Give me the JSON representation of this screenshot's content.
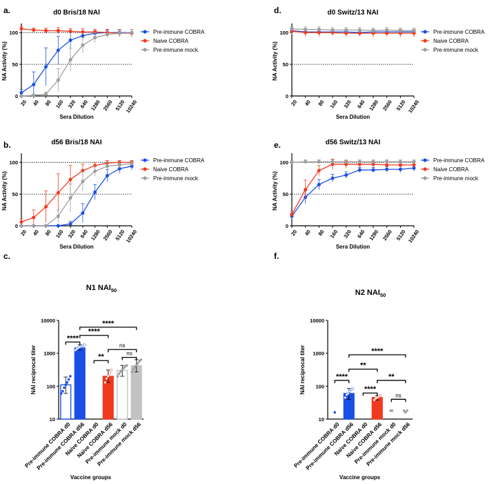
{
  "figure": {
    "colors": {
      "blue": "#1a4fe6",
      "red": "#ef3a1f",
      "gray": "#9e9e9e",
      "lightgray": "#c3c3c3"
    }
  },
  "chart_data": [
    {
      "id": "a",
      "type": "line",
      "panel_label": "a.",
      "title": "d0 Bris/18 NAI",
      "xlabel": "Sera Dilution",
      "ylabel": "NA Activity (%)",
      "categories": [
        "20",
        "40",
        "80",
        "160",
        "320",
        "640",
        "1280",
        "2560",
        "5120",
        "10240"
      ],
      "ylim": [
        0,
        110
      ],
      "yticks": [
        "0",
        "50",
        "100"
      ],
      "reference_lines": [
        50,
        100
      ],
      "legend": [
        "Pre-immune COBRA",
        "Naive COBRA",
        "Pre-immune mock"
      ],
      "series": [
        {
          "name": "Pre-immune COBRA",
          "color": "#1a4fe6",
          "values": [
            5,
            18,
            46,
            72,
            88,
            95,
            99,
            100,
            100,
            100
          ],
          "errors": [
            5,
            20,
            30,
            22,
            12,
            6,
            4,
            4,
            5,
            5
          ]
        },
        {
          "name": "Naive COBRA",
          "color": "#ef3a1f",
          "values": [
            106,
            104,
            103,
            103,
            102,
            101,
            101,
            100,
            99,
            99
          ],
          "errors": [
            4,
            3,
            4,
            5,
            4,
            5,
            4,
            5,
            5,
            6
          ]
        },
        {
          "name": "Pre-immune mock",
          "color": "#9e9e9e",
          "values": [
            0,
            1,
            3,
            25,
            57,
            80,
            92,
            97,
            99,
            100
          ],
          "errors": [
            1,
            2,
            3,
            18,
            18,
            12,
            8,
            5,
            6,
            5
          ]
        }
      ]
    },
    {
      "id": "b",
      "type": "line",
      "panel_label": "b.",
      "title": "d56 Bris/18 NAI",
      "xlabel": "Sera Dilution",
      "ylabel": "NA Activity (%)",
      "categories": [
        "20",
        "40",
        "80",
        "160",
        "320",
        "640",
        "1280",
        "2560",
        "5120",
        "10240"
      ],
      "ylim": [
        0,
        110
      ],
      "yticks": [
        "0",
        "50",
        "100"
      ],
      "reference_lines": [
        50,
        100
      ],
      "legend": [
        "Pre-immune COBRA",
        "Naive COBRA",
        "Pre-immune mock"
      ],
      "series": [
        {
          "name": "Pre-immune COBRA",
          "color": "#1a4fe6",
          "values": [
            0,
            0,
            0,
            0,
            3,
            20,
            53,
            79,
            90,
            94
          ],
          "errors": [
            0,
            0,
            0,
            1,
            4,
            15,
            12,
            10,
            7,
            6
          ]
        },
        {
          "name": "Naive COBRA",
          "color": "#ef3a1f",
          "values": [
            6,
            13,
            30,
            52,
            73,
            87,
            95,
            99,
            100,
            100
          ],
          "errors": [
            5,
            12,
            25,
            30,
            22,
            10,
            5,
            4,
            3,
            3
          ]
        },
        {
          "name": "Pre-immune mock",
          "color": "#9e9e9e",
          "values": [
            0,
            0,
            0,
            15,
            44,
            70,
            86,
            94,
            96,
            98
          ],
          "errors": [
            0,
            0,
            1,
            10,
            22,
            15,
            8,
            6,
            5,
            4
          ]
        }
      ]
    },
    {
      "id": "d",
      "type": "line",
      "panel_label": "d.",
      "title": "d0 Switz/13 NAI",
      "xlabel": "Sera Dilution",
      "ylabel": "NA Activity (%)",
      "categories": [
        "20",
        "40",
        "80",
        "160",
        "320",
        "640",
        "1280",
        "2560",
        "5120",
        "10240"
      ],
      "ylim": [
        0,
        110
      ],
      "yticks": [
        "0",
        "50",
        "100"
      ],
      "reference_lines": [
        50
      ],
      "legend": [
        "Pre-immune COBRA",
        "Naive COBRA",
        "Pre-immune mock"
      ],
      "series": [
        {
          "name": "Pre-immune COBRA",
          "color": "#1a4fe6",
          "values": [
            103,
            101,
            101,
            101,
            101,
            100,
            101,
            101,
            101,
            101
          ],
          "errors": [
            4,
            4,
            4,
            4,
            4,
            4,
            4,
            4,
            4,
            4
          ]
        },
        {
          "name": "Naive COBRA",
          "color": "#ef3a1f",
          "values": [
            102,
            100,
            100,
            100,
            99,
            99,
            99,
            99,
            99,
            99
          ],
          "errors": [
            5,
            6,
            6,
            5,
            5,
            5,
            6,
            5,
            6,
            6
          ]
        },
        {
          "name": "Pre-immune mock",
          "color": "#9e9e9e",
          "values": [
            106,
            105,
            105,
            104,
            104,
            104,
            103,
            104,
            103,
            103
          ],
          "errors": [
            3,
            4,
            4,
            4,
            4,
            4,
            4,
            4,
            4,
            4
          ]
        }
      ]
    },
    {
      "id": "e",
      "type": "line",
      "panel_label": "e.",
      "title": "d56 Switz/13 NAI",
      "xlabel": "Sera Dilution",
      "ylabel": "NA Activity (%)",
      "categories": [
        "20",
        "40",
        "80",
        "160",
        "320",
        "640",
        "1280",
        "2560",
        "5120",
        "10240"
      ],
      "ylim": [
        0,
        110
      ],
      "yticks": [
        "0",
        "50",
        "100"
      ],
      "reference_lines": [
        50,
        100
      ],
      "legend": [
        "Pre-immune COBRA",
        "Naive COBRA",
        "Pre-immune mock"
      ],
      "series": [
        {
          "name": "Pre-immune COBRA",
          "color": "#1a4fe6",
          "values": [
            15,
            45,
            65,
            75,
            80,
            88,
            88,
            89,
            89,
            91
          ],
          "errors": [
            5,
            10,
            8,
            6,
            5,
            4,
            4,
            4,
            5,
            5
          ]
        },
        {
          "name": "Naive COBRA",
          "color": "#ef3a1f",
          "values": [
            18,
            57,
            87,
            97,
            97,
            97,
            97,
            96,
            96,
            96
          ],
          "errors": [
            5,
            15,
            8,
            8,
            6,
            5,
            5,
            5,
            5,
            5
          ]
        },
        {
          "name": "Pre-immune mock",
          "color": "#9e9e9e",
          "values": [
            100,
            101,
            101,
            101,
            101,
            101,
            101,
            101,
            101,
            101
          ],
          "errors": [
            3,
            3,
            3,
            3,
            3,
            3,
            3,
            3,
            3,
            3
          ]
        }
      ]
    },
    {
      "id": "c",
      "type": "bar",
      "panel_label": "c.",
      "title_main": "N1 NAI",
      "title_sub": "50",
      "ylabel": "NAI reciprocal titer",
      "xlabel": "Vaccine groups",
      "yscale": "log",
      "ylim": [
        10,
        10000
      ],
      "yticks": [
        "10",
        "100",
        "1000",
        "10000"
      ],
      "categories": [
        "Pre-immune COBRA d0",
        "Pre-immune COBRA d56",
        "Naive COBRA d0",
        "Naive COBRA d56",
        "Pre-immune mock d0",
        "Pre-immune mock d56"
      ],
      "values": [
        110,
        1450,
        null,
        200,
        300,
        420
      ],
      "errors_hi": [
        190,
        1800,
        null,
        310,
        430,
        640
      ],
      "errors_lo": [
        60,
        1250,
        null,
        130,
        200,
        270
      ],
      "points": [
        [
          60,
          70,
          90,
          110,
          130,
          160,
          200
        ],
        [
          1250,
          1350,
          1450,
          1550,
          1650,
          1750,
          1800
        ],
        [],
        [
          130,
          170,
          200,
          250,
          310
        ],
        [
          200,
          240,
          280,
          320,
          360,
          400,
          430
        ],
        [
          270,
          330,
          380,
          430,
          500,
          580,
          640
        ]
      ],
      "bar_colors": [
        "#1a4fe6",
        "#1a4fe6",
        "#ef3a1f",
        "#ef3a1f",
        "#c3c3c3",
        "#c3c3c3"
      ],
      "bar_filled": [
        false,
        true,
        false,
        true,
        false,
        true
      ],
      "comparisons": [
        {
          "from": 0,
          "to": 1,
          "label": "****",
          "level": 2200
        },
        {
          "from": 1,
          "to": 3,
          "label": "****",
          "level": 3500
        },
        {
          "from": 1,
          "to": 5,
          "label": "****",
          "level": 6200
        },
        {
          "from": 2,
          "to": 3,
          "label": "**",
          "level": 600
        },
        {
          "from": 3,
          "to": 5,
          "label": "ns",
          "level": 1300
        },
        {
          "from": 4,
          "to": 5,
          "label": "ns",
          "level": 750
        }
      ]
    },
    {
      "id": "f",
      "type": "bar",
      "panel_label": "f.",
      "title_main": "N2 NAI",
      "title_sub": "50",
      "ylabel": "NAI reciprocal titer",
      "xlabel": "Vaccine groups",
      "yscale": "log",
      "ylim": [
        10,
        10000
      ],
      "yticks": [
        "10",
        "100",
        "1000",
        "10000"
      ],
      "categories": [
        "Pre-immune COBRA d0",
        "Pre-immune COBRA d56",
        "Naive COBRA d0",
        "Naive COBRA d56",
        "Pre-immune mock d0",
        "Pre-immune mock d56"
      ],
      "values": [
        null,
        60,
        null,
        45,
        null,
        null
      ],
      "errors_hi": [
        null,
        85,
        null,
        52,
        null,
        null
      ],
      "errors_lo": [
        null,
        40,
        null,
        38,
        null,
        null
      ],
      "points": [
        [
          16
        ],
        [
          45,
          55,
          60,
          70,
          80,
          85
        ],
        [],
        [
          38,
          42,
          45,
          48,
          52
        ],
        [
          18,
          18
        ],
        [
          18,
          16,
          18
        ]
      ],
      "bar_colors": [
        "#1a4fe6",
        "#1a4fe6",
        "#ef3a1f",
        "#ef3a1f",
        "#c3c3c3",
        "#c3c3c3"
      ],
      "bar_filled": [
        false,
        true,
        false,
        true,
        false,
        true
      ],
      "comparisons": [
        {
          "from": 0,
          "to": 1,
          "label": "****",
          "level": 150
        },
        {
          "from": 1,
          "to": 3,
          "label": "**",
          "level": 330
        },
        {
          "from": 1,
          "to": 5,
          "label": "****",
          "level": 900
        },
        {
          "from": 3,
          "to": 5,
          "label": "**",
          "level": 150
        },
        {
          "from": 2,
          "to": 3,
          "label": "****",
          "level": 62
        },
        {
          "from": 4,
          "to": 5,
          "label": "ns",
          "level": 40
        }
      ]
    }
  ]
}
